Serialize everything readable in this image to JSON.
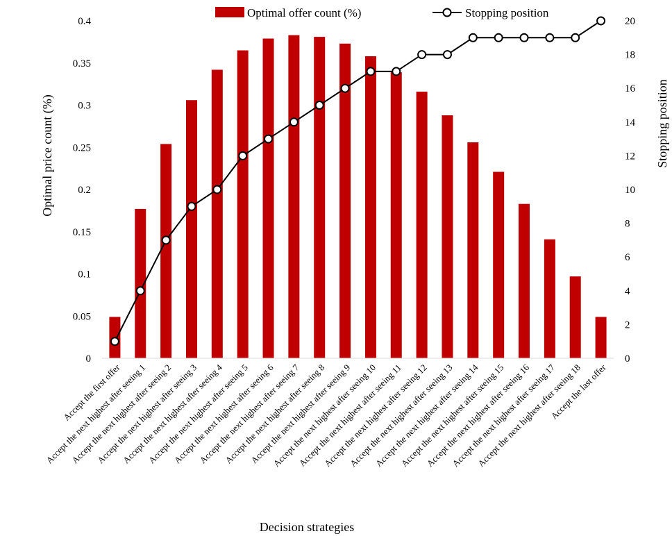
{
  "chart_data": {
    "type": "bar",
    "legend_position": "top",
    "grid": false,
    "xlabel": "Decision strategies",
    "ylabel": "Optimal price count (%)",
    "y2label": "Stopping position",
    "ylim": [
      0,
      0.4
    ],
    "y2lim": [
      0,
      20
    ],
    "yticks": [
      "0",
      "0.05",
      "0.1",
      "0.15",
      "0.2",
      "0.25",
      "0.3",
      "0.35",
      "0.4"
    ],
    "y2ticks": [
      "0",
      "2",
      "4",
      "6",
      "8",
      "10",
      "12",
      "14",
      "16",
      "18",
      "20"
    ],
    "categories": [
      "Accept the first offer",
      "Accept the next highest after seeing 1",
      "Accept the next highest after seeing 2",
      "Accept the next highest after seeing 3",
      "Accept the next highest after seeing 4",
      "Accept the next highest after seeing 5",
      "Accept the next highest after seeing 6",
      "Accept the next highest after seeing 7",
      "Accept the next highest after seeing 8",
      "Accept the next highest after seeing 9",
      "Accept the next highest after seeing 10",
      "Accept the next highest after seeing 11",
      "Accept the next highest after seeing 12",
      "Accept the next highest after seeing 13",
      "Accept the next highest after seeing 14",
      "Accept the next highest after seeing 15",
      "Accept the next highest after seeing 16",
      "Accept the next highest after seeing 17",
      "Accept the next highest after seeing 18",
      "Accept the last offer"
    ],
    "series": [
      {
        "name": "Optimal offer count (%)",
        "type": "bar",
        "axis": "left",
        "color": "#C00000",
        "values": [
          0.049,
          0.177,
          0.254,
          0.306,
          0.342,
          0.365,
          0.379,
          0.383,
          0.381,
          0.373,
          0.358,
          0.339,
          0.316,
          0.288,
          0.256,
          0.221,
          0.183,
          0.141,
          0.097,
          0.049
        ]
      },
      {
        "name": "Stopping position",
        "type": "line",
        "axis": "right",
        "color": "#000000",
        "marker": "open-circle",
        "values": [
          1,
          4,
          7,
          9,
          10,
          12,
          13,
          14,
          15,
          16,
          17,
          17,
          18,
          18,
          19,
          19,
          19,
          19,
          19,
          20
        ]
      }
    ]
  }
}
